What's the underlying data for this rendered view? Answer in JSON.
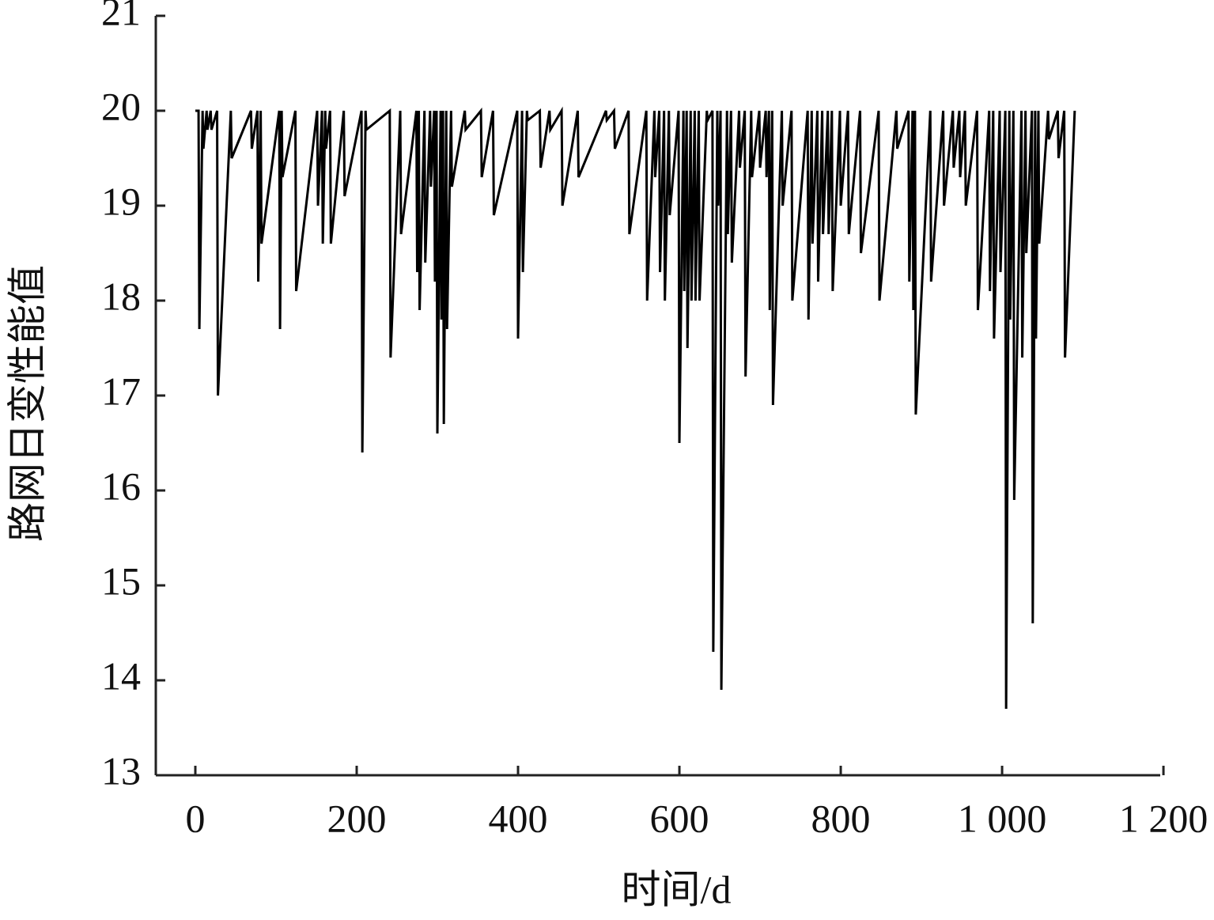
{
  "chart_data": {
    "type": "line",
    "x_label": "时间/d",
    "y_label": "路网日变性能值",
    "color": "#000000",
    "xlim": [
      -49,
      1196
    ],
    "ylim": [
      13,
      21
    ],
    "xticks": [
      0,
      200,
      400,
      600,
      800,
      {
        "value": 1000,
        "label": "1 000"
      },
      {
        "value": 1200,
        "label": "1 200"
      }
    ],
    "yticks": [
      13,
      14,
      15,
      16,
      17,
      18,
      19,
      20,
      21
    ],
    "grid": false,
    "x": [
      0,
      4,
      5,
      9,
      10,
      14,
      15,
      19,
      20,
      27,
      28,
      44,
      45,
      69,
      70,
      77,
      78,
      81,
      82,
      104,
      105,
      107,
      108,
      124,
      125,
      151,
      152,
      157,
      158,
      161,
      162,
      167,
      168,
      184,
      185,
      206,
      207,
      211,
      212,
      241,
      242,
      254,
      255,
      274,
      275,
      277,
      278,
      284,
      285,
      291,
      292,
      296,
      297,
      299,
      300,
      304,
      305,
      307,
      308,
      311,
      312,
      317,
      318,
      334,
      335,
      354,
      355,
      369,
      370,
      399,
      400,
      405,
      406,
      411,
      412,
      427,
      428,
      439,
      440,
      454,
      455,
      474,
      475,
      509,
      510,
      519,
      520,
      537,
      538,
      559,
      560,
      569,
      570,
      575,
      576,
      581,
      582,
      587,
      588,
      599,
      600,
      605,
      606,
      609,
      610,
      614,
      615,
      619,
      620,
      624,
      625,
      634,
      635,
      641,
      642,
      647,
      648,
      651,
      652,
      659,
      660,
      664,
      665,
      674,
      675,
      681,
      682,
      689,
      690,
      699,
      700,
      707,
      708,
      711,
      712,
      715,
      716,
      727,
      728,
      739,
      740,
      759,
      760,
      764,
      765,
      771,
      772,
      777,
      778,
      784,
      785,
      789,
      790,
      799,
      800,
      809,
      810,
      824,
      825,
      847,
      848,
      869,
      870,
      884,
      885,
      889,
      890,
      892,
      893,
      911,
      912,
      927,
      928,
      939,
      940,
      947,
      948,
      954,
      955,
      969,
      970,
      984,
      985,
      989,
      990,
      997,
      998,
      1004,
      1005,
      1009,
      1010,
      1014,
      1015,
      1024,
      1025,
      1029,
      1030,
      1037,
      1038,
      1041,
      1042,
      1045,
      1046,
      1057,
      1058,
      1069,
      1070,
      1077,
      1078,
      1090
    ],
    "values": [
      20,
      20,
      17.7,
      20,
      19.6,
      20,
      19.8,
      20,
      19.8,
      20,
      17.0,
      20,
      19.5,
      20,
      19.6,
      20,
      18.2,
      20,
      18.6,
      20,
      17.7,
      20,
      19.3,
      20,
      18.1,
      20,
      19.0,
      20,
      18.6,
      20,
      19.6,
      20,
      18.6,
      20,
      19.1,
      20,
      16.4,
      20,
      19.8,
      20,
      17.4,
      20,
      18.7,
      20,
      18.3,
      20,
      17.9,
      20,
      18.4,
      20,
      19.2,
      20,
      18.2,
      20,
      16.6,
      20,
      17.8,
      20,
      16.7,
      20,
      17.7,
      20,
      19.2,
      20,
      19.8,
      20,
      19.3,
      20,
      18.9,
      20,
      17.6,
      20,
      18.3,
      20,
      19.9,
      20,
      19.4,
      20,
      19.8,
      20,
      19.0,
      20,
      19.3,
      20,
      19.9,
      20,
      19.6,
      20,
      18.7,
      20,
      18.0,
      20,
      19.3,
      20,
      18.3,
      20,
      18.0,
      20,
      18.9,
      20,
      16.5,
      20,
      18.1,
      20,
      17.5,
      20,
      18.0,
      20,
      18.0,
      20,
      18.0,
      20,
      19.9,
      20,
      14.3,
      20,
      19.0,
      20,
      13.9,
      20,
      18.7,
      20,
      18.4,
      20,
      19.4,
      20,
      17.2,
      20,
      19.3,
      20,
      19.4,
      20,
      19.3,
      20,
      17.9,
      20,
      16.9,
      20,
      19.0,
      20,
      18.0,
      20,
      17.8,
      20,
      18.6,
      20,
      18.2,
      20,
      18.7,
      20,
      18.7,
      20,
      18.1,
      20,
      19.0,
      20,
      18.7,
      20,
      18.5,
      20,
      18.0,
      20,
      19.6,
      20,
      18.2,
      20,
      17.9,
      20,
      16.8,
      20,
      18.2,
      20,
      19.0,
      20,
      19.4,
      20,
      19.3,
      20,
      19.0,
      20,
      17.9,
      20,
      18.1,
      20,
      17.6,
      20,
      18.3,
      20,
      13.7,
      20,
      17.8,
      20,
      15.9,
      20,
      17.4,
      20,
      18.5,
      20,
      14.6,
      20,
      17.6,
      20,
      18.6,
      20,
      19.7,
      20,
      19.5,
      20,
      17.4,
      20
    ]
  }
}
